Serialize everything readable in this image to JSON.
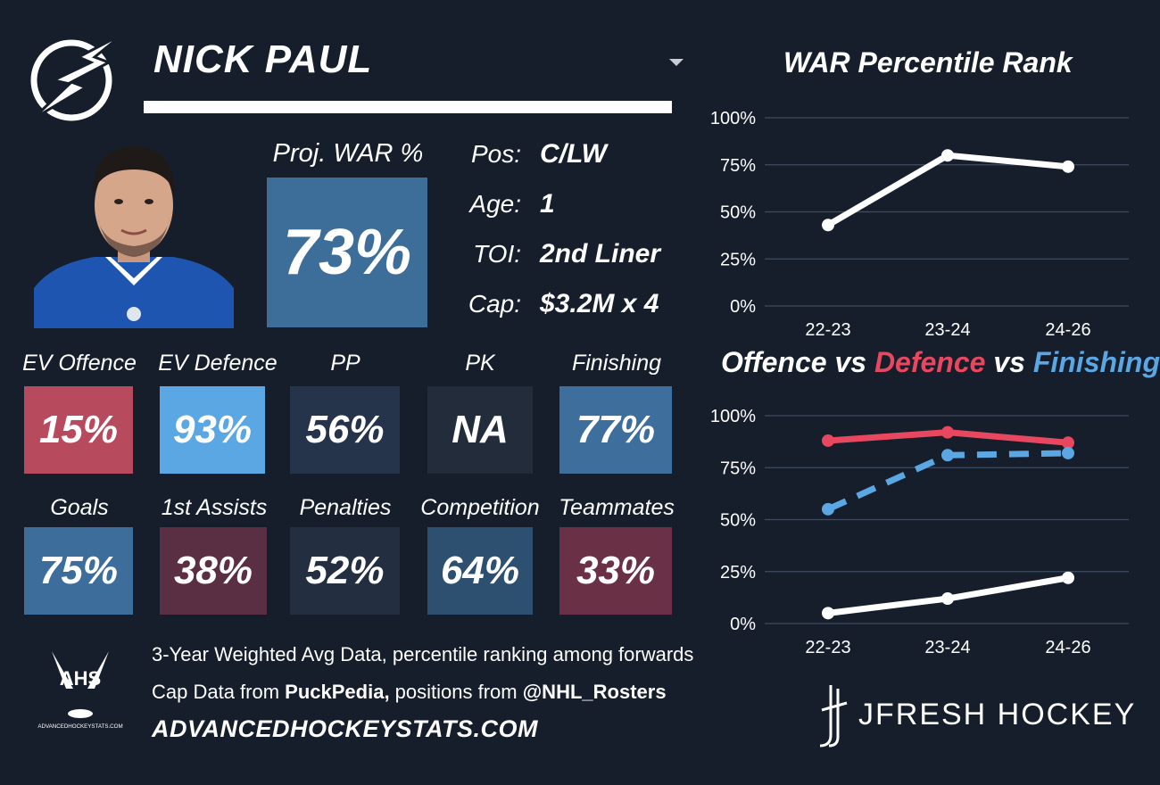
{
  "player": {
    "name": "NICK PAUL"
  },
  "projected": {
    "label": "Proj. WAR %",
    "value": "73%"
  },
  "info": [
    {
      "label": "Pos:",
      "value": "C/LW"
    },
    {
      "label": "Age:",
      "value": "1"
    },
    {
      "label": "TOI:",
      "value": "2nd Liner"
    },
    {
      "label": "Cap:",
      "value": "$3.2M x 4"
    }
  ],
  "stats_row1": [
    {
      "label": "EV Offence",
      "value": "15%",
      "color": "#b84a5d"
    },
    {
      "label": "EV Defence",
      "value": "93%",
      "color": "#5ba7e3"
    },
    {
      "label": "PP",
      "value": "56%",
      "color": "#25344a"
    },
    {
      "label": "PK",
      "value": "NA",
      "color": "#222c3b"
    },
    {
      "label": "Finishing",
      "value": "77%",
      "color": "#3e6f9c"
    }
  ],
  "stats_row2": [
    {
      "label": "Goals",
      "value": "75%",
      "color": "#3d6e9b"
    },
    {
      "label": "1st Assists",
      "value": "38%",
      "color": "#5a2f43"
    },
    {
      "label": "Penalties",
      "value": "52%",
      "color": "#232f41"
    },
    {
      "label": "Competition",
      "value": "64%",
      "color": "#2e5070"
    },
    {
      "label": "Teammates",
      "value": "33%",
      "color": "#6a3146"
    }
  ],
  "chart_titles": {
    "war": "WAR Percentile Rank",
    "ovd_part1": "Offence",
    "ovd_vs1": " vs ",
    "ovd_part2": "Defence",
    "ovd_vs2": " vs ",
    "ovd_part3": "Finishing"
  },
  "chart_data": [
    {
      "type": "line",
      "title": "WAR Percentile Rank",
      "x": [
        "22-23",
        "23-24",
        "24-26"
      ],
      "ylim": [
        0,
        100
      ],
      "yticks": [
        "100%",
        "75%",
        "50%",
        "25%",
        "0%"
      ],
      "grid": true,
      "series": [
        {
          "values": [
            43,
            80,
            74
          ],
          "color": "#ffffff",
          "style": "solid"
        }
      ]
    },
    {
      "type": "line",
      "title": "Offence vs Defence vs Finishing",
      "x": [
        "22-23",
        "23-24",
        "24-26"
      ],
      "ylim": [
        0,
        100
      ],
      "yticks": [
        "100%",
        "75%",
        "50%",
        "25%",
        "0%"
      ],
      "grid": true,
      "series": [
        {
          "name": "Offence",
          "values": [
            5,
            12,
            22
          ],
          "color": "#ffffff",
          "style": "solid"
        },
        {
          "name": "Defence",
          "values": [
            88,
            92,
            87
          ],
          "color": "#e8485f",
          "style": "solid"
        },
        {
          "name": "Finishing",
          "values": [
            55,
            81,
            82
          ],
          "color": "#5ba7e3",
          "style": "dashed"
        }
      ]
    }
  ],
  "footer": {
    "line1": "3-Year Weighted Avg Data, percentile ranking among forwards",
    "line2_prefix": "Cap Data from ",
    "line2_bold1": "PuckPedia,",
    "line2_mid": " positions from ",
    "line2_bold2": "@NHL_Rosters",
    "url": "ADVANCEDHOCKEYSTATS.COM",
    "ahs_logo_text": "AHS",
    "ahs_logo_sub": "ADVANCEDHOCKEYSTATS.COM",
    "brand": "JFRESH HOCKEY"
  },
  "icons": {
    "team": "lightning-bolt-icon",
    "dropdown": "chevron-down-icon",
    "ahs": "hockey-sticks-icon",
    "jfresh": "jfresh-logo-icon"
  }
}
